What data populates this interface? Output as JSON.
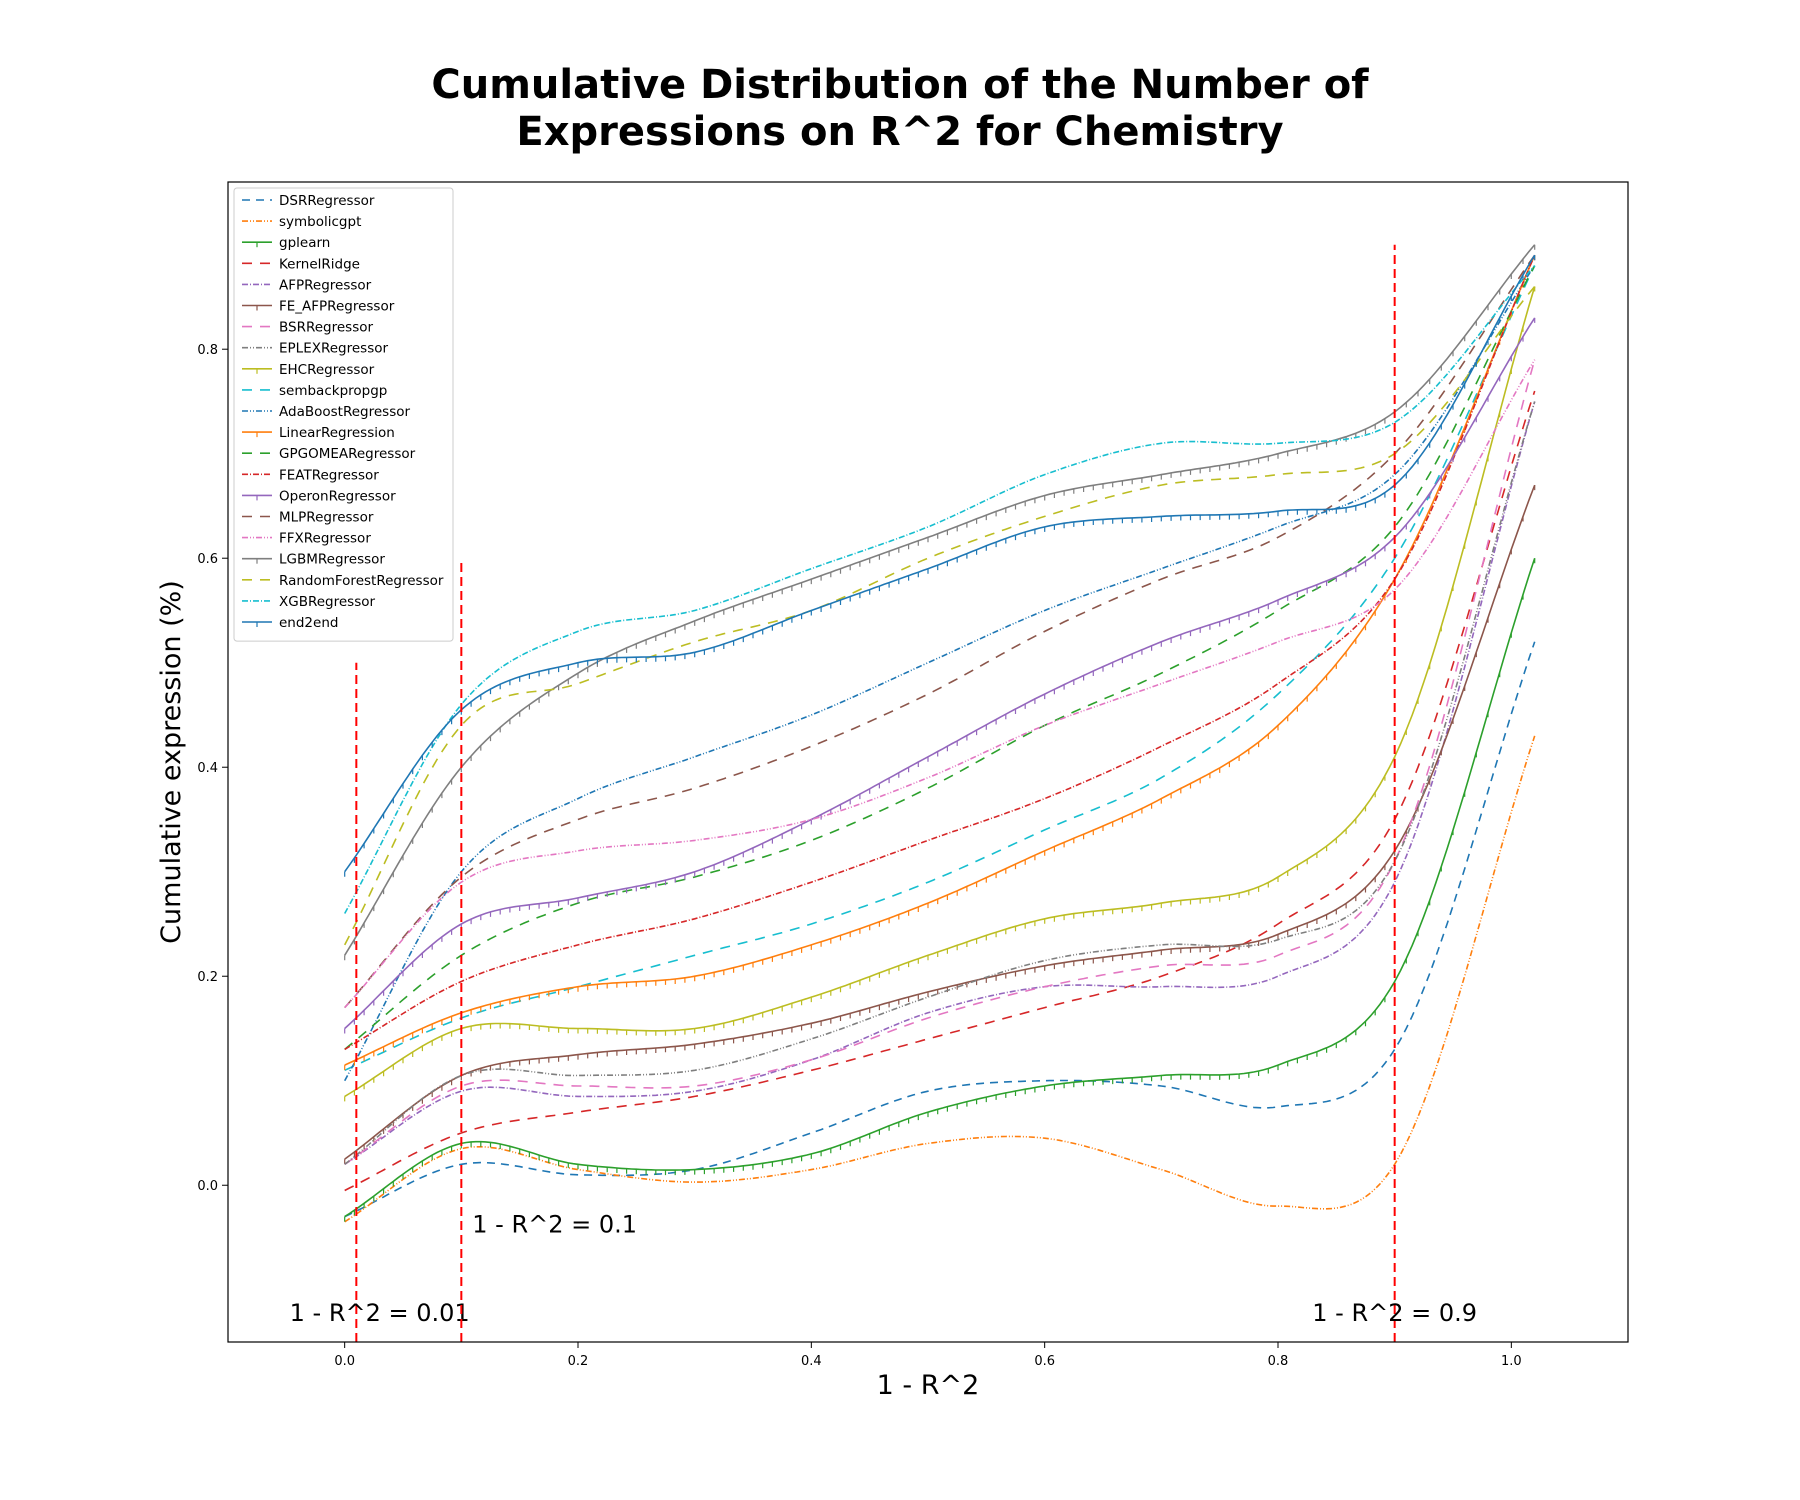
{
  "chart_data": {
    "type": "line",
    "title_lines": [
      "Cumulative Distribution of the Number of",
      "Expressions on R^2 for Chemistry"
    ],
    "xlabel": "1 - R^2",
    "ylabel": "Cumulative expression (%)",
    "xlim": [
      -0.1,
      1.1
    ],
    "ylim": [
      -0.15,
      0.96
    ],
    "xticks": [
      0.0,
      0.2,
      0.4,
      0.6,
      0.8,
      1.0
    ],
    "xtick_labels": [
      "0.0",
      "0.2",
      "0.4",
      "0.6",
      "0.8",
      "1.0"
    ],
    "yticks": [
      0.0,
      0.2,
      0.4,
      0.6,
      0.8
    ],
    "ytick_labels": [
      "0.0",
      "0.2",
      "0.4",
      "0.6",
      "0.8"
    ],
    "grid": false,
    "legend_position": "upper-left",
    "x": [
      0.0,
      0.1,
      0.2,
      0.3,
      0.4,
      0.5,
      0.6,
      0.7,
      0.8,
      0.9,
      1.02
    ],
    "series": [
      {
        "name": "DSRRegressor",
        "color": "#1f77b4",
        "dash": "8,6",
        "marker": "none",
        "values": [
          -0.03,
          0.02,
          0.01,
          0.015,
          0.05,
          0.09,
          0.1,
          0.095,
          0.075,
          0.13,
          0.52
        ]
      },
      {
        "name": "symbolicgpt",
        "color": "#ff7f0e",
        "dash": "6,2,1,2,1,2",
        "marker": "none",
        "values": [
          -0.035,
          0.035,
          0.015,
          0.003,
          0.015,
          0.04,
          0.045,
          0.015,
          -0.02,
          0.02,
          0.43
        ]
      },
      {
        "name": "gplearn",
        "color": "#2ca02c",
        "dash": "",
        "marker": "tick",
        "values": [
          -0.03,
          0.04,
          0.02,
          0.015,
          0.03,
          0.07,
          0.095,
          0.105,
          0.115,
          0.195,
          0.6
        ]
      },
      {
        "name": "KernelRidge",
        "color": "#d62728",
        "dash": "10,8",
        "marker": "none",
        "values": [
          -0.005,
          0.05,
          0.07,
          0.085,
          0.11,
          0.14,
          0.17,
          0.2,
          0.25,
          0.35,
          0.76
        ]
      },
      {
        "name": "AFPRegressor",
        "color": "#9467bd",
        "dash": "6,2,1,2",
        "marker": "none",
        "values": [
          0.02,
          0.09,
          0.085,
          0.09,
          0.12,
          0.165,
          0.19,
          0.19,
          0.2,
          0.29,
          0.75
        ]
      },
      {
        "name": "FE_AFPRegressor",
        "color": "#8c564b",
        "dash": "",
        "marker": "tick",
        "values": [
          0.025,
          0.105,
          0.125,
          0.135,
          0.155,
          0.185,
          0.21,
          0.225,
          0.24,
          0.32,
          0.67
        ]
      },
      {
        "name": "BSRRegressor",
        "color": "#e377c2",
        "dash": "10,8",
        "marker": "none",
        "values": [
          0.02,
          0.095,
          0.095,
          0.095,
          0.12,
          0.16,
          0.19,
          0.21,
          0.22,
          0.31,
          0.79
        ]
      },
      {
        "name": "EPLEXRegressor",
        "color": "#7f7f7f",
        "dash": "6,2,1,2,1,2",
        "marker": "none",
        "values": [
          0.02,
          0.105,
          0.105,
          0.11,
          0.14,
          0.18,
          0.215,
          0.23,
          0.235,
          0.31,
          0.75
        ]
      },
      {
        "name": "EHCRegressor",
        "color": "#bcbd22",
        "dash": "",
        "marker": "tick",
        "values": [
          0.085,
          0.15,
          0.15,
          0.15,
          0.18,
          0.22,
          0.255,
          0.27,
          0.295,
          0.41,
          0.86
        ]
      },
      {
        "name": "sembackpropgp",
        "color": "#17becf",
        "dash": "10,8",
        "marker": "none",
        "values": [
          0.11,
          0.16,
          0.19,
          0.22,
          0.25,
          0.29,
          0.34,
          0.39,
          0.47,
          0.6,
          0.88
        ]
      },
      {
        "name": "AdaBoostRegressor",
        "color": "#1f77b4",
        "dash": "6,2,1,2,1,2",
        "marker": "none",
        "values": [
          0.1,
          0.3,
          0.37,
          0.41,
          0.45,
          0.5,
          0.55,
          0.59,
          0.63,
          0.68,
          0.88
        ]
      },
      {
        "name": "LinearRegression",
        "color": "#ff7f0e",
        "dash": "",
        "marker": "tick",
        "values": [
          0.115,
          0.165,
          0.19,
          0.2,
          0.23,
          0.27,
          0.32,
          0.37,
          0.44,
          0.58,
          0.89
        ]
      },
      {
        "name": "GPGOMEARegressor",
        "color": "#2ca02c",
        "dash": "10,8",
        "marker": "none",
        "values": [
          0.13,
          0.22,
          0.27,
          0.295,
          0.33,
          0.38,
          0.44,
          0.49,
          0.55,
          0.63,
          0.88
        ]
      },
      {
        "name": "FEATRegressor",
        "color": "#d62728",
        "dash": "6,2,1,2",
        "marker": "none",
        "values": [
          0.13,
          0.195,
          0.23,
          0.255,
          0.29,
          0.33,
          0.37,
          0.42,
          0.48,
          0.58,
          0.89
        ]
      },
      {
        "name": "OperonRegressor",
        "color": "#9467bd",
        "dash": "",
        "marker": "tick",
        "values": [
          0.15,
          0.25,
          0.275,
          0.3,
          0.35,
          0.41,
          0.47,
          0.52,
          0.56,
          0.62,
          0.83
        ]
      },
      {
        "name": "MLPRegressor",
        "color": "#8c564b",
        "dash": "10,8",
        "marker": "none",
        "values": [
          0.17,
          0.295,
          0.35,
          0.38,
          0.42,
          0.47,
          0.53,
          0.58,
          0.62,
          0.7,
          0.89
        ]
      },
      {
        "name": "FFXRegressor",
        "color": "#e377c2",
        "dash": "6,2,1,2,1,2",
        "marker": "none",
        "values": [
          0.17,
          0.29,
          0.32,
          0.33,
          0.35,
          0.39,
          0.44,
          0.48,
          0.52,
          0.57,
          0.79
        ]
      },
      {
        "name": "LGBMRegressor",
        "color": "#7f7f7f",
        "dash": "",
        "marker": "tick",
        "values": [
          0.22,
          0.4,
          0.49,
          0.54,
          0.58,
          0.62,
          0.66,
          0.68,
          0.7,
          0.74,
          0.9
        ]
      },
      {
        "name": "RandomForestRegressor",
        "color": "#bcbd22",
        "dash": "10,8",
        "marker": "none",
        "values": [
          0.23,
          0.44,
          0.48,
          0.52,
          0.55,
          0.6,
          0.64,
          0.67,
          0.68,
          0.7,
          0.86
        ]
      },
      {
        "name": "XGBRegressor",
        "color": "#17becf",
        "dash": "6,2,1,2",
        "marker": "none",
        "values": [
          0.26,
          0.46,
          0.53,
          0.55,
          0.59,
          0.63,
          0.68,
          0.71,
          0.71,
          0.73,
          0.88
        ]
      },
      {
        "name": "end2end",
        "color": "#1f77b4",
        "dash": "",
        "marker": "tick",
        "values": [
          0.3,
          0.455,
          0.5,
          0.51,
          0.55,
          0.59,
          0.63,
          0.64,
          0.645,
          0.67,
          0.89
        ]
      }
    ],
    "reference_lines": [
      {
        "x": 0.01,
        "y_top": 0.5,
        "label": "1 - R^2 = 0.01",
        "label_x": 0.03,
        "label_y": -0.13
      },
      {
        "x": 0.1,
        "y_top": 0.6,
        "label": "1 - R^2 = 0.1",
        "label_x": 0.18,
        "label_y": -0.045
      },
      {
        "x": 0.9,
        "y_top": 0.9,
        "label": "1 - R^2 = 0.9",
        "label_x": 0.9,
        "label_y": -0.13
      }
    ],
    "reference_color": "#ff0000"
  }
}
